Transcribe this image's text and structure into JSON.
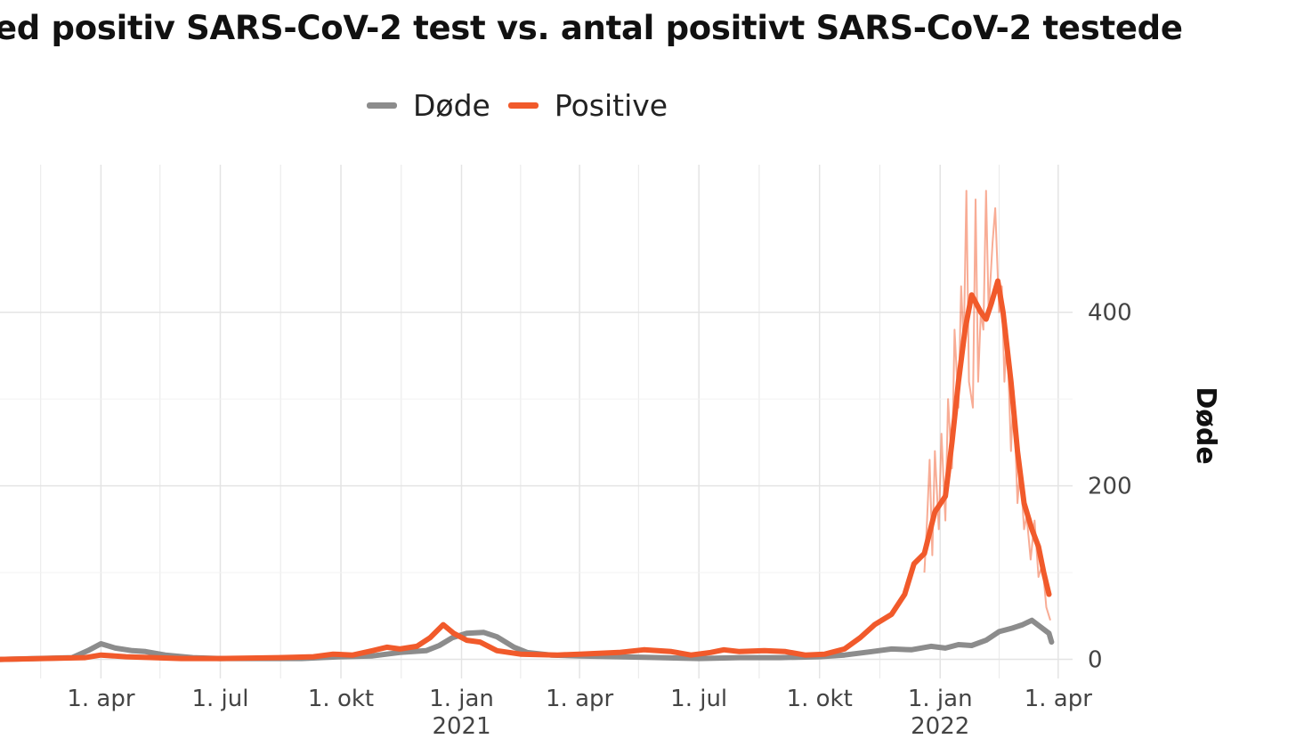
{
  "chart_data": {
    "type": "line",
    "title": "ed positiv SARS-CoV-2 test vs. antal positivt SARS-CoV-2 testede",
    "ylabel_right": "Døde",
    "yticks": [
      0,
      200,
      400
    ],
    "ylim": [
      -22,
      570
    ],
    "xlim": [
      "2020-01-15",
      "2022-04-12"
    ],
    "xticks": [
      {
        "date": "2020-04-01",
        "label": "1. apr",
        "year": ""
      },
      {
        "date": "2020-07-01",
        "label": "1. jul",
        "year": ""
      },
      {
        "date": "2020-10-01",
        "label": "1. okt",
        "year": ""
      },
      {
        "date": "2021-01-01",
        "label": "1. jan",
        "year": "2021"
      },
      {
        "date": "2021-04-01",
        "label": "1. apr",
        "year": ""
      },
      {
        "date": "2021-07-01",
        "label": "1. jul",
        "year": ""
      },
      {
        "date": "2021-10-01",
        "label": "1. okt",
        "year": ""
      },
      {
        "date": "2022-01-01",
        "label": "1. jan",
        "year": "2022"
      },
      {
        "date": "2022-04-01",
        "label": "1. apr",
        "year": ""
      }
    ],
    "grid": true,
    "legend_position": "top",
    "series": [
      {
        "name": "Døde",
        "color": "#8c8c8c",
        "points": [
          [
            "2020-01-15",
            0
          ],
          [
            "2020-03-10",
            2
          ],
          [
            "2020-03-22",
            10
          ],
          [
            "2020-04-01",
            18
          ],
          [
            "2020-04-12",
            13
          ],
          [
            "2020-04-25",
            10
          ],
          [
            "2020-05-05",
            9
          ],
          [
            "2020-05-20",
            5
          ],
          [
            "2020-06-10",
            2
          ],
          [
            "2020-07-01",
            1
          ],
          [
            "2020-08-01",
            1
          ],
          [
            "2020-09-01",
            1
          ],
          [
            "2020-10-01",
            3
          ],
          [
            "2020-10-25",
            4
          ],
          [
            "2020-11-15",
            8
          ],
          [
            "2020-12-05",
            10
          ],
          [
            "2020-12-15",
            16
          ],
          [
            "2020-12-25",
            25
          ],
          [
            "2021-01-05",
            30
          ],
          [
            "2021-01-18",
            31
          ],
          [
            "2021-01-28",
            26
          ],
          [
            "2021-02-10",
            14
          ],
          [
            "2021-02-20",
            8
          ],
          [
            "2021-03-10",
            5
          ],
          [
            "2021-04-01",
            4
          ],
          [
            "2021-05-01",
            3
          ],
          [
            "2021-06-01",
            2
          ],
          [
            "2021-07-01",
            1
          ],
          [
            "2021-08-01",
            2
          ],
          [
            "2021-09-01",
            2
          ],
          [
            "2021-10-01",
            3
          ],
          [
            "2021-10-20",
            5
          ],
          [
            "2021-11-10",
            9
          ],
          [
            "2021-11-25",
            12
          ],
          [
            "2021-12-10",
            11
          ],
          [
            "2021-12-25",
            15
          ],
          [
            "2022-01-05",
            13
          ],
          [
            "2022-01-15",
            17
          ],
          [
            "2022-01-25",
            16
          ],
          [
            "2022-02-05",
            22
          ],
          [
            "2022-02-15",
            32
          ],
          [
            "2022-02-25",
            36
          ],
          [
            "2022-03-05",
            40
          ],
          [
            "2022-03-12",
            45
          ],
          [
            "2022-03-18",
            38
          ],
          [
            "2022-03-25",
            30
          ],
          [
            "2022-03-27",
            20
          ]
        ]
      },
      {
        "name": "Positive",
        "color": "#f15a2b",
        "points": [
          [
            "2020-01-15",
            0
          ],
          [
            "2020-03-20",
            2
          ],
          [
            "2020-04-01",
            5
          ],
          [
            "2020-04-20",
            3
          ],
          [
            "2020-06-01",
            1
          ],
          [
            "2020-07-01",
            1
          ],
          [
            "2020-08-15",
            2
          ],
          [
            "2020-09-10",
            3
          ],
          [
            "2020-09-25",
            6
          ],
          [
            "2020-10-10",
            5
          ],
          [
            "2020-10-25",
            10
          ],
          [
            "2020-11-05",
            14
          ],
          [
            "2020-11-15",
            12
          ],
          [
            "2020-11-28",
            15
          ],
          [
            "2020-12-08",
            25
          ],
          [
            "2020-12-18",
            40
          ],
          [
            "2020-12-26",
            30
          ],
          [
            "2021-01-05",
            22
          ],
          [
            "2021-01-15",
            20
          ],
          [
            "2021-01-28",
            10
          ],
          [
            "2021-02-15",
            6
          ],
          [
            "2021-03-15",
            5
          ],
          [
            "2021-04-01",
            6
          ],
          [
            "2021-05-01",
            8
          ],
          [
            "2021-05-20",
            11
          ],
          [
            "2021-06-10",
            9
          ],
          [
            "2021-06-25",
            5
          ],
          [
            "2021-07-10",
            8
          ],
          [
            "2021-07-20",
            11
          ],
          [
            "2021-08-01",
            9
          ],
          [
            "2021-08-20",
            10
          ],
          [
            "2021-09-05",
            9
          ],
          [
            "2021-09-20",
            5
          ],
          [
            "2021-10-05",
            6
          ],
          [
            "2021-10-20",
            12
          ],
          [
            "2021-11-01",
            25
          ],
          [
            "2021-11-12",
            40
          ],
          [
            "2021-11-25",
            52
          ],
          [
            "2021-12-05",
            75
          ],
          [
            "2021-12-12",
            110
          ],
          [
            "2021-12-20",
            122
          ],
          [
            "2021-12-28",
            170
          ],
          [
            "2022-01-05",
            188
          ],
          [
            "2022-01-10",
            250
          ],
          [
            "2022-01-15",
            320
          ],
          [
            "2022-01-20",
            380
          ],
          [
            "2022-01-25",
            420
          ],
          [
            "2022-02-01",
            400
          ],
          [
            "2022-02-05",
            392
          ],
          [
            "2022-02-09",
            410
          ],
          [
            "2022-02-14",
            436
          ],
          [
            "2022-02-18",
            400
          ],
          [
            "2022-02-24",
            320
          ],
          [
            "2022-03-01",
            240
          ],
          [
            "2022-03-06",
            180
          ],
          [
            "2022-03-12",
            150
          ],
          [
            "2022-03-17",
            130
          ],
          [
            "2022-03-21",
            100
          ],
          [
            "2022-03-25",
            75
          ]
        ],
        "raw_points": [
          [
            "2021-12-20",
            100
          ],
          [
            "2021-12-22",
            160
          ],
          [
            "2021-12-24",
            230
          ],
          [
            "2021-12-26",
            120
          ],
          [
            "2021-12-28",
            240
          ],
          [
            "2021-12-31",
            150
          ],
          [
            "2022-01-02",
            260
          ],
          [
            "2022-01-05",
            160
          ],
          [
            "2022-01-07",
            300
          ],
          [
            "2022-01-10",
            220
          ],
          [
            "2022-01-12",
            380
          ],
          [
            "2022-01-15",
            290
          ],
          [
            "2022-01-17",
            430
          ],
          [
            "2022-01-19",
            360
          ],
          [
            "2022-01-21",
            540
          ],
          [
            "2022-01-23",
            320
          ],
          [
            "2022-01-26",
            290
          ],
          [
            "2022-01-28",
            530
          ],
          [
            "2022-01-30",
            320
          ],
          [
            "2022-02-01",
            400
          ],
          [
            "2022-02-03",
            380
          ],
          [
            "2022-02-05",
            540
          ],
          [
            "2022-02-07",
            400
          ],
          [
            "2022-02-10",
            480
          ],
          [
            "2022-02-12",
            520
          ],
          [
            "2022-02-15",
            400
          ],
          [
            "2022-02-17",
            430
          ],
          [
            "2022-02-19",
            320
          ],
          [
            "2022-02-21",
            380
          ],
          [
            "2022-02-24",
            240
          ],
          [
            "2022-02-26",
            310
          ],
          [
            "2022-03-01",
            180
          ],
          [
            "2022-03-03",
            220
          ],
          [
            "2022-03-06",
            150
          ],
          [
            "2022-03-08",
            165
          ],
          [
            "2022-03-11",
            115
          ],
          [
            "2022-03-14",
            160
          ],
          [
            "2022-03-17",
            95
          ],
          [
            "2022-03-20",
            110
          ],
          [
            "2022-03-23",
            60
          ],
          [
            "2022-03-26",
            45
          ]
        ]
      }
    ]
  }
}
